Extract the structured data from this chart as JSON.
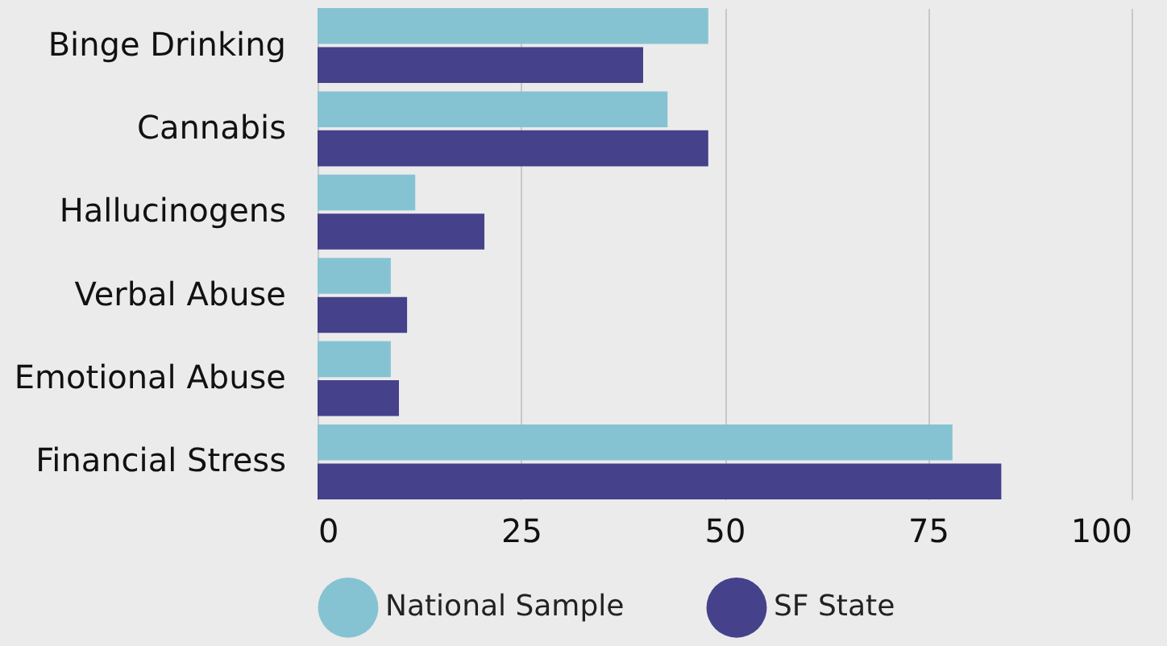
{
  "chart_data": {
    "type": "bar",
    "orientation": "horizontal",
    "categories": [
      "Binge Drinking",
      "Cannabis",
      "Hallucinogens",
      "Verbal Abuse",
      "Emotional Abuse",
      "Financial Stress"
    ],
    "series": [
      {
        "name": "National Sample",
        "color": "#86c3d2",
        "values": [
          48,
          43,
          12,
          9,
          9,
          78
        ]
      },
      {
        "name": "SF State",
        "color": "#46418b",
        "values": [
          40,
          48,
          20.5,
          11,
          10,
          84
        ]
      }
    ],
    "xlim": [
      0,
      100
    ],
    "xticks": [
      0,
      25,
      50,
      75,
      100
    ],
    "grid": "x",
    "legend": "bottom"
  }
}
